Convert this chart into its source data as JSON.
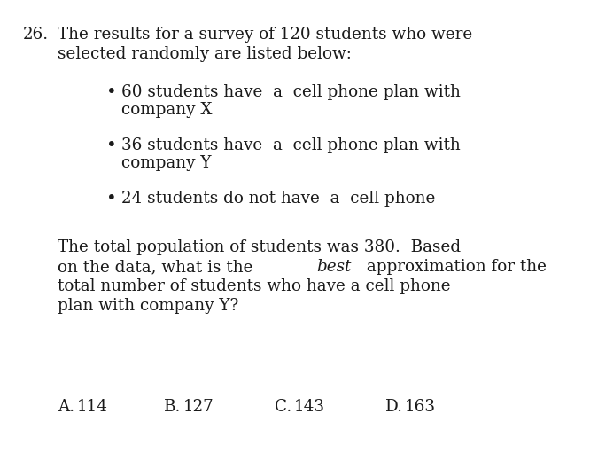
{
  "bg_color": "#ffffff",
  "text_color": "#1a1a1a",
  "question_number": "26.",
  "intro_line1": "The results for a survey of 120 students who were",
  "intro_line2": "selected randomly are listed below:",
  "bullet1_line1": "60 students have  a  cell phone plan with",
  "bullet1_line2": "company X",
  "bullet2_line1": "36 students have  a  cell phone plan with",
  "bullet2_line2": "company Y",
  "bullet3_line1": "24 students do not have  a  cell phone",
  "para_line1": "The total population of students was 380.  Based",
  "para_line2_pre": "on the data, what is the ",
  "para_line2_bold": "best",
  "para_line2_post": " approximation for the",
  "para_line3": "total number of students who have a cell phone",
  "para_line4": "plan with company Y?",
  "answer_labels": [
    "A.",
    "B.",
    "C.",
    "D."
  ],
  "answer_values": [
    "114",
    "127",
    "143",
    "163"
  ],
  "font_size": 13.2,
  "font_family": "DejaVu Serif"
}
